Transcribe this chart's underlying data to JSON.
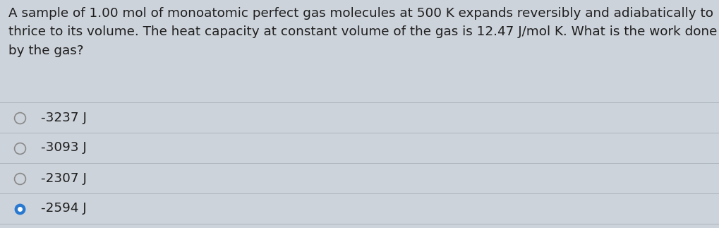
{
  "question_text": "A sample of 1.00 mol of monoatomic perfect gas molecules at 500 K expands reversibly and adiabatically to\nthrice to its volume. The heat capacity at constant volume of the gas is 12.47 J/mol K. What is the work done\nby the gas?",
  "options": [
    {
      "label": "-3237 J",
      "selected": false
    },
    {
      "label": "-3093 J",
      "selected": false
    },
    {
      "label": "-2307 J",
      "selected": false
    },
    {
      "label": "-2594 J",
      "selected": true
    }
  ],
  "bg_color": "#cdd3db",
  "text_color": "#1e1e1e",
  "radio_unselected_edge_color": "#888888",
  "radio_selected_fill_color": "#2979d0",
  "radio_selected_edge_color": "#2979d0",
  "font_size_question": 13.2,
  "font_size_options": 13.2,
  "separator_color": "#adb5bd",
  "separator_linewidth": 0.7
}
